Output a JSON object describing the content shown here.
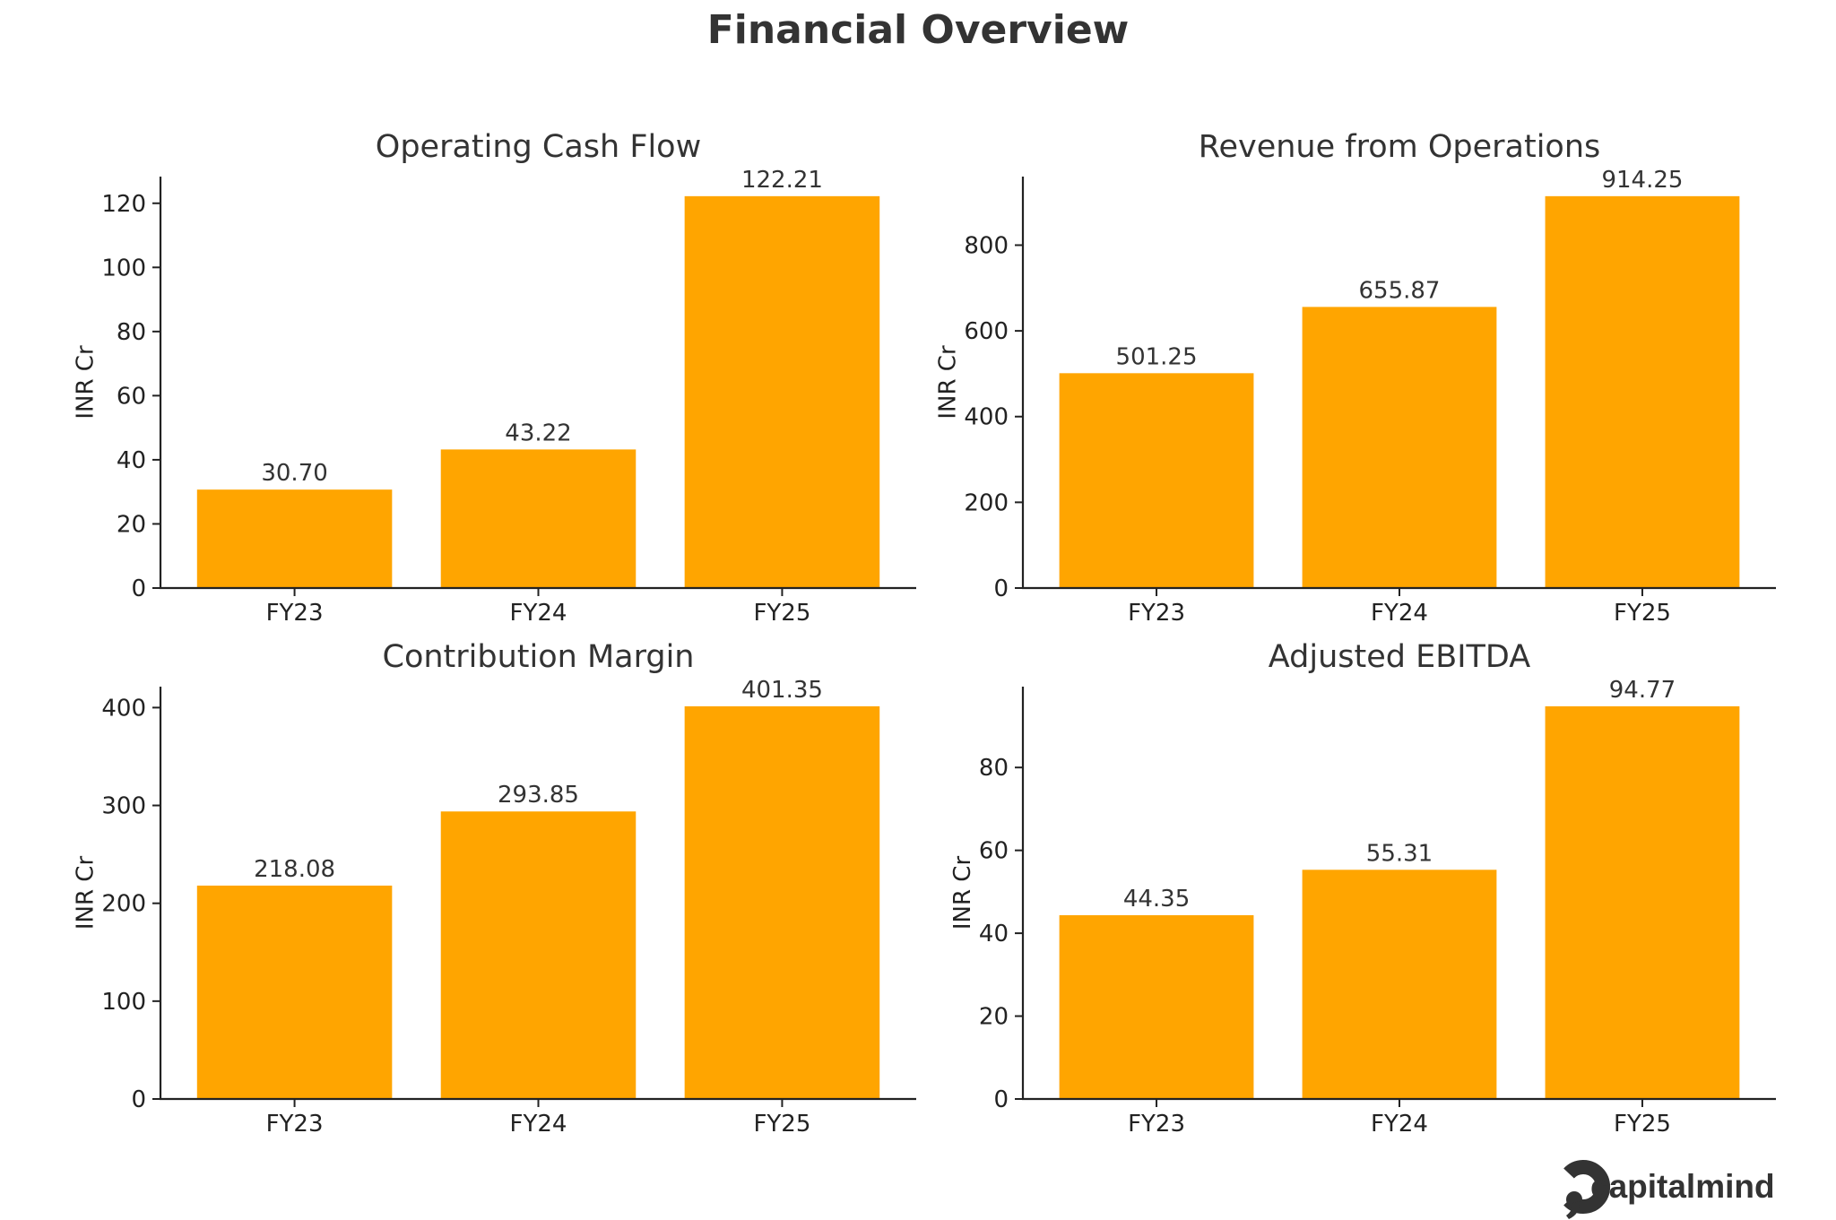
{
  "title": "Financial Overview",
  "bar_color": "#FFA500",
  "brand": {
    "name": "capitalmind",
    "logo_icon": "capitalmind-logo-icon"
  },
  "chart_data": [
    {
      "type": "bar",
      "title": "Operating Cash Flow",
      "categories": [
        "FY23",
        "FY24",
        "FY25"
      ],
      "values": [
        30.7,
        43.22,
        122.21
      ],
      "value_labels": [
        "30.70",
        "43.22",
        "122.21"
      ],
      "ylabel": "INR Cr",
      "ylim": [
        0,
        128.32
      ],
      "yticks": [
        0,
        20,
        40,
        60,
        80,
        100,
        120
      ]
    },
    {
      "type": "bar",
      "title": "Revenue from Operations",
      "categories": [
        "FY23",
        "FY24",
        "FY25"
      ],
      "values": [
        501.25,
        655.87,
        914.25
      ],
      "value_labels": [
        "501.25",
        "655.87",
        "914.25"
      ],
      "ylabel": "INR Cr",
      "ylim": [
        0,
        959.96
      ],
      "yticks": [
        0,
        200,
        400,
        600,
        800
      ]
    },
    {
      "type": "bar",
      "title": "Contribution Margin",
      "categories": [
        "FY23",
        "FY24",
        "FY25"
      ],
      "values": [
        218.08,
        293.85,
        401.35
      ],
      "value_labels": [
        "218.08",
        "293.85",
        "401.35"
      ],
      "ylabel": "INR Cr",
      "ylim": [
        0,
        421.42
      ],
      "yticks": [
        0,
        100,
        200,
        300,
        400
      ]
    },
    {
      "type": "bar",
      "title": "Adjusted EBITDA",
      "categories": [
        "FY23",
        "FY24",
        "FY25"
      ],
      "values": [
        44.35,
        55.31,
        94.77
      ],
      "value_labels": [
        "44.35",
        "55.31",
        "94.77"
      ],
      "ylabel": "INR Cr",
      "ylim": [
        0,
        99.51
      ],
      "yticks": [
        0,
        20,
        40,
        60,
        80
      ]
    }
  ]
}
